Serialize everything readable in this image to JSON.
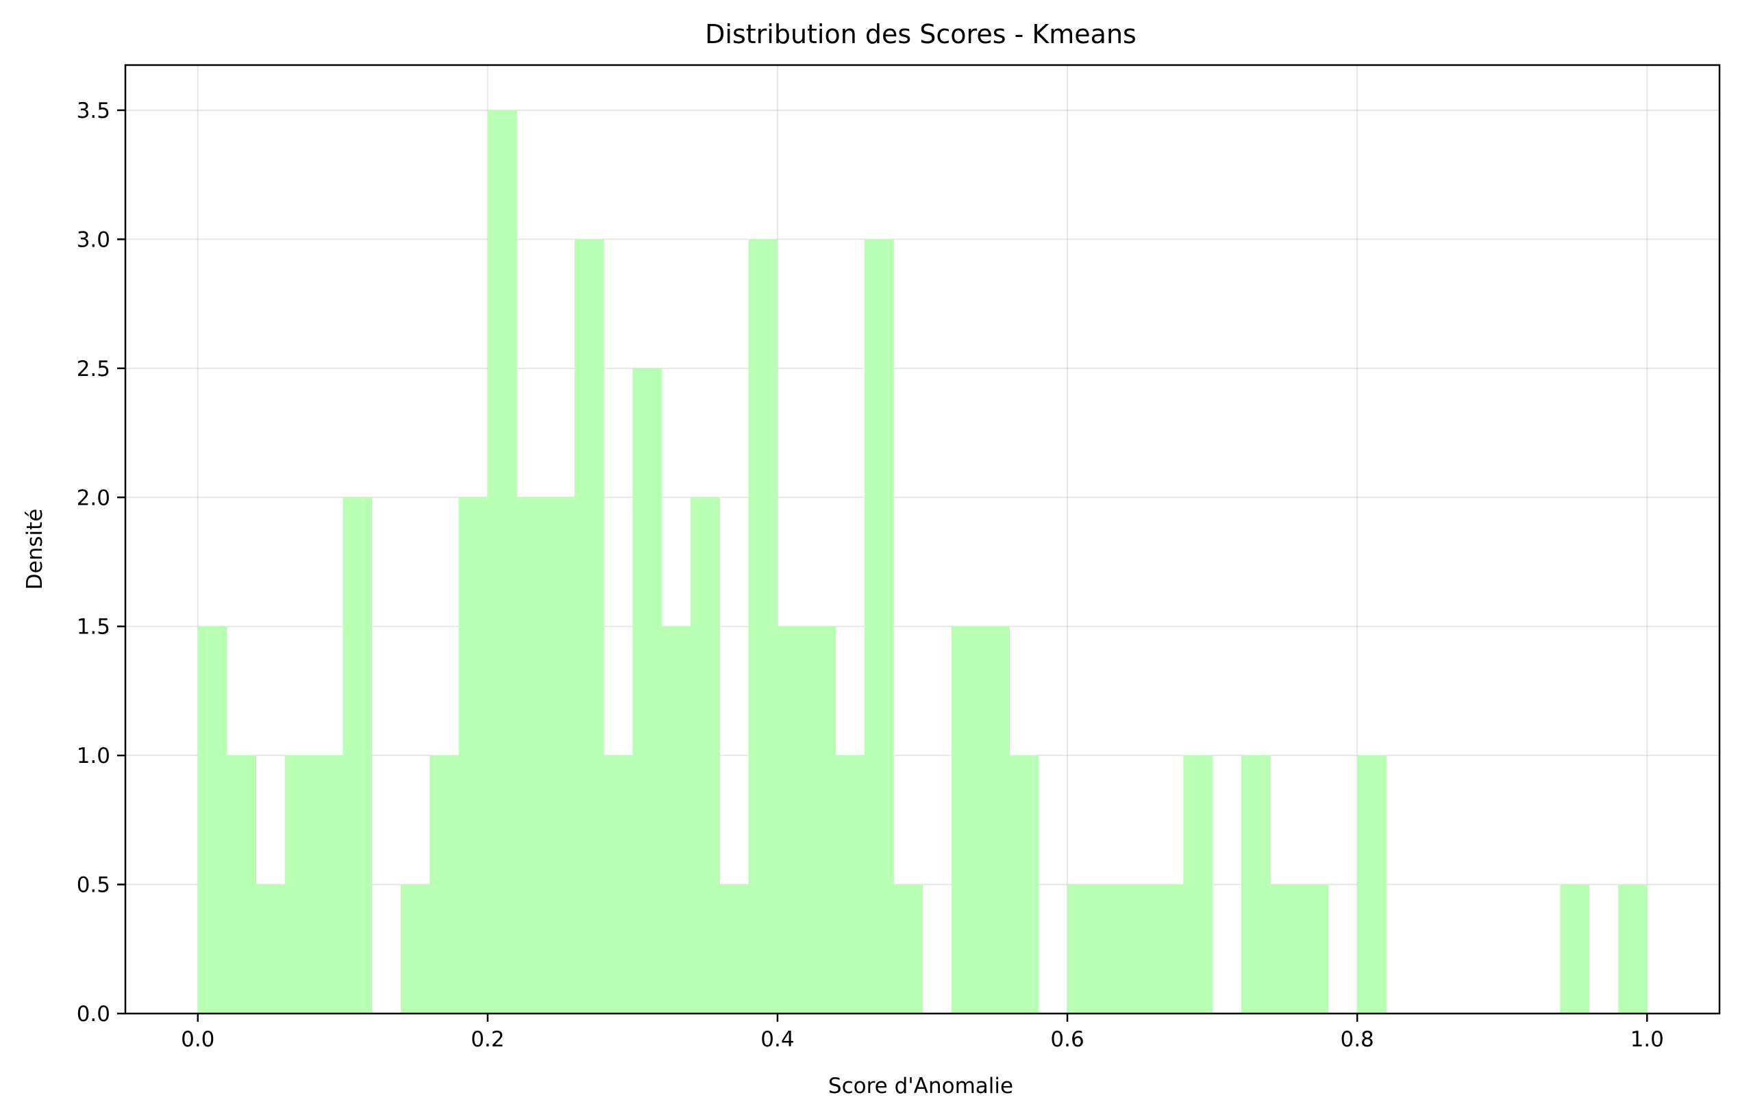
{
  "chart_data": {
    "type": "bar",
    "title": "Distribution des Scores - Kmeans",
    "xlabel": "Score d'Anomalie",
    "ylabel": "Densité",
    "xlim": [
      -0.05,
      1.05
    ],
    "ylim": [
      0,
      3.675
    ],
    "grid": true,
    "bar_color": "#b8ffb4",
    "xticks": [
      0.0,
      0.2,
      0.4,
      0.6,
      0.8,
      1.0
    ],
    "xtick_labels": [
      "0.0",
      "0.2",
      "0.4",
      "0.6",
      "0.8",
      "1.0"
    ],
    "yticks": [
      0.0,
      0.5,
      1.0,
      1.5,
      2.0,
      2.5,
      3.0,
      3.5
    ],
    "ytick_labels": [
      "0.0",
      "0.5",
      "1.0",
      "1.5",
      "2.0",
      "2.5",
      "3.0",
      "3.5"
    ],
    "bin_width": 0.02,
    "bin_edges_start": [
      0.0,
      0.02,
      0.04,
      0.06,
      0.08,
      0.1,
      0.12,
      0.14,
      0.16,
      0.18,
      0.2,
      0.22,
      0.24,
      0.26,
      0.28,
      0.3,
      0.32,
      0.34,
      0.36,
      0.38,
      0.4,
      0.42,
      0.44,
      0.46,
      0.48,
      0.5,
      0.52,
      0.54,
      0.56,
      0.58,
      0.6,
      0.62,
      0.64,
      0.66,
      0.68,
      0.7,
      0.72,
      0.74,
      0.76,
      0.78,
      0.8,
      0.82,
      0.84,
      0.86,
      0.88,
      0.9,
      0.92,
      0.94,
      0.96,
      0.98
    ],
    "values": [
      1.5,
      1.0,
      0.5,
      1.0,
      1.0,
      2.0,
      0.0,
      0.5,
      1.0,
      2.0,
      3.5,
      2.0,
      2.0,
      3.0,
      1.0,
      2.5,
      1.5,
      2.0,
      0.5,
      3.0,
      1.5,
      1.5,
      1.0,
      3.0,
      0.5,
      0.0,
      1.5,
      1.5,
      1.0,
      0.0,
      0.5,
      0.5,
      0.5,
      0.5,
      1.0,
      0.0,
      1.0,
      0.5,
      0.5,
      0.0,
      1.0,
      0.0,
      0.0,
      0.0,
      0.0,
      0.0,
      0.0,
      0.5,
      0.0,
      0.5
    ]
  }
}
